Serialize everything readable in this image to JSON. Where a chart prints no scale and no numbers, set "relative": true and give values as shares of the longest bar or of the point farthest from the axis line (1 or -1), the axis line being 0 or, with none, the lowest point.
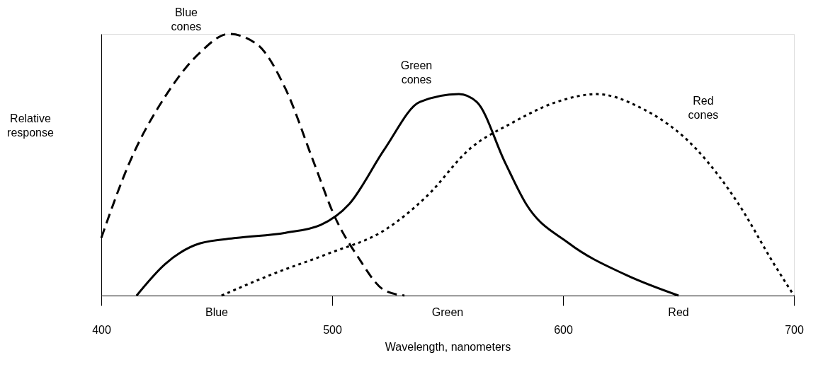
{
  "chart_data": {
    "type": "line",
    "relative": true,
    "xlabel": "Wavelength, nanometers",
    "ylabel": "Relative response",
    "xlim": [
      400,
      700
    ],
    "xticks": [
      400,
      500,
      600,
      700
    ],
    "grid": false,
    "marker": "none",
    "series": [
      {
        "name": "Blue cones",
        "color": "#000000",
        "line_style": "dashed",
        "x": [
          400,
          412.3,
          427.6,
          442.9,
          455.2,
          467.5,
          479.8,
          492,
          501.2,
          511,
          522.7,
          531.3
        ],
        "values": [
          0.22,
          0.51,
          0.76,
          0.93,
          1.0,
          0.96,
          0.79,
          0.51,
          0.3,
          0.15,
          0.02,
          0
        ]
      },
      {
        "name": "Green cones",
        "color": "#000000",
        "line_style": "solid",
        "x": [
          415.3,
          427.6,
          442.9,
          458.3,
          479.8,
          495,
          507.4,
          522.7,
          538,
          554.9,
          562.6,
          574.8,
          584,
          602.5,
          627,
          650
        ],
        "values": [
          0,
          0.12,
          0.2,
          0.22,
          0.24,
          0.27,
          0.35,
          0.56,
          0.74,
          0.77,
          0.74,
          0.51,
          0.35,
          0.2,
          0.08,
          0
        ]
      },
      {
        "name": "Red cones",
        "color": "#000000",
        "line_style": "dotted",
        "x": [
          452.1,
          473.6,
          498.2,
          522.7,
          541,
          559.5,
          577.9,
          597.2,
          614.7,
          633.1,
          657.7,
          676,
          691.4,
          700
        ],
        "values": [
          0,
          0.08,
          0.16,
          0.25,
          0.38,
          0.56,
          0.66,
          0.74,
          0.77,
          0.72,
          0.56,
          0.35,
          0.12,
          0
        ]
      }
    ],
    "annotations": [
      "Blue",
      "Green",
      "Red"
    ]
  }
}
